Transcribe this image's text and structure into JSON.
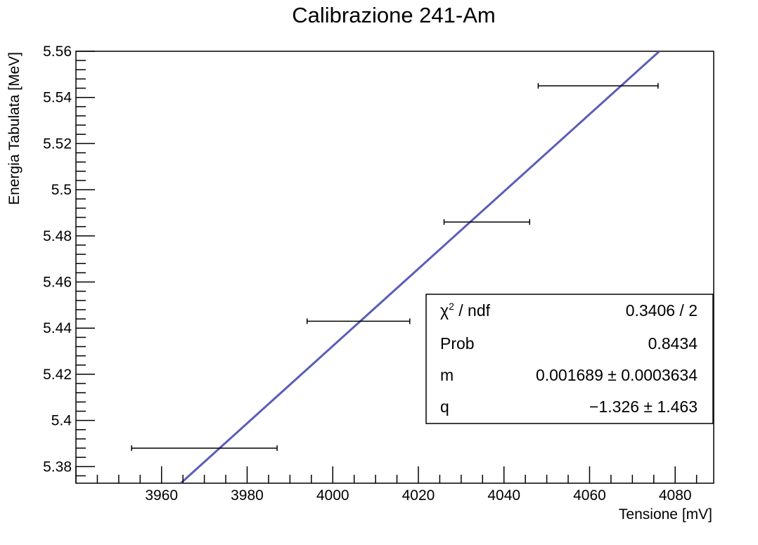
{
  "chart_data": {
    "type": "scatter",
    "title": "Calibrazione 241-Am",
    "xlabel": "Tensione [mV]",
    "ylabel": "Energia Tabulata [MeV]",
    "xlim": [
      3940,
      4089
    ],
    "ylim": [
      5.3728,
      5.56
    ],
    "x_ticks": [
      3960,
      3980,
      4000,
      4020,
      4040,
      4060,
      4080
    ],
    "x_tick_labels": [
      "3960",
      "3980",
      "4000",
      "4020",
      "4040",
      "4060",
      "4080"
    ],
    "y_ticks": [
      5.38,
      5.4,
      5.42,
      5.44,
      5.46,
      5.48,
      5.5,
      5.52,
      5.54,
      5.56
    ],
    "y_tick_labels": [
      "5.38",
      "5.4",
      "5.42",
      "5.44",
      "5.46",
      "5.48",
      "5.5",
      "5.52",
      "5.54",
      "5.56"
    ],
    "grid": false,
    "series": [
      {
        "type": "errorbar",
        "color": "#000000",
        "points": [
          {
            "x": 3970,
            "y": 5.388,
            "xerr": 17
          },
          {
            "x": 4006,
            "y": 5.443,
            "xerr": 12
          },
          {
            "x": 4036,
            "y": 5.486,
            "xerr": 10
          },
          {
            "x": 4062,
            "y": 5.545,
            "xerr": 14
          }
        ]
      },
      {
        "type": "line",
        "color": "#5c5cb8",
        "x": [
          3964.5,
          4076.3
        ],
        "y": [
          5.3728,
          5.56
        ]
      }
    ],
    "stats_box": {
      "position": "bottom-right",
      "rows": [
        {
          "label_base": "χ",
          "label_sup": "2",
          "label_rest": " / ndf",
          "value": "0.3406 / 2"
        },
        {
          "label": "Prob",
          "value": "0.8434"
        },
        {
          "label": "m",
          "value": "0.001689 ± 0.0003634"
        },
        {
          "label": "q",
          "value": "−1.326 ± 1.463"
        }
      ]
    }
  }
}
